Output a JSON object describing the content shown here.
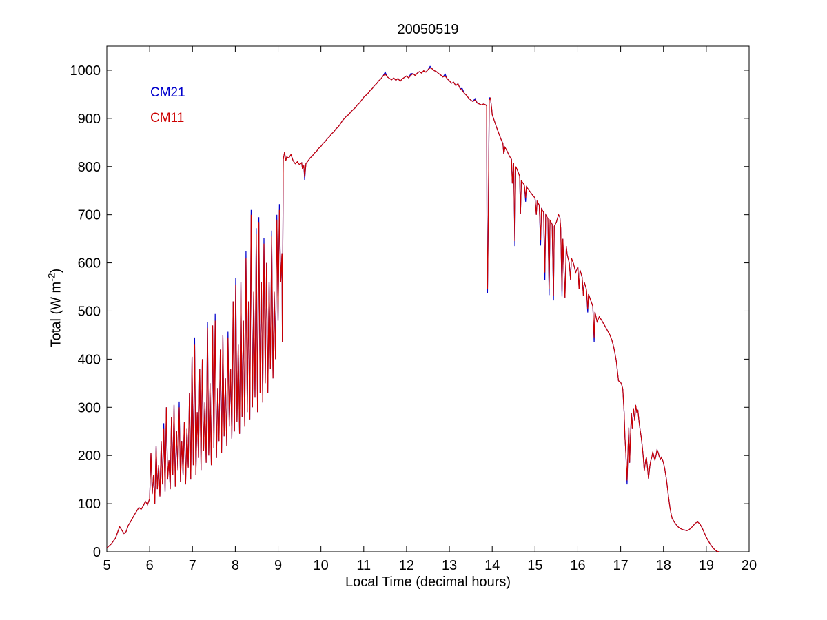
{
  "ylabel_parts": {
    "pre": "Total (W m",
    "sup": "-2",
    "post": ")"
  },
  "legend": {
    "items": [
      {
        "label": "CM21",
        "color": "#0000CC"
      },
      {
        "label": "CM11",
        "color": "#CC0000"
      }
    ]
  },
  "chart_data": {
    "type": "line",
    "title": "20050519",
    "xlabel": "Local Time (decimal hours)",
    "ylabel": "Total (W m^-2)",
    "xlim": [
      5,
      20
    ],
    "ylim": [
      0,
      1050
    ],
    "grid": false,
    "x_ticks": [
      5,
      6,
      7,
      8,
      9,
      10,
      11,
      12,
      13,
      14,
      15,
      16,
      17,
      18,
      19,
      20
    ],
    "y_ticks": [
      0,
      100,
      200,
      300,
      400,
      500,
      600,
      700,
      800,
      900,
      1000
    ],
    "legend_position": "top-left-inside-text",
    "series": [
      {
        "name": "CM21",
        "color": "#0000CC"
      },
      {
        "name": "CM11",
        "color": "#CC0000"
      }
    ],
    "points_note": "each point = [x_hours, cm11_wm2, optional cm21_minus_cm11_offset]",
    "points": [
      [
        5,
        8
      ],
      [
        5.05,
        12
      ],
      [
        5.1,
        16
      ],
      [
        5.15,
        22
      ],
      [
        5.2,
        28
      ],
      [
        5.25,
        40
      ],
      [
        5.3,
        52
      ],
      [
        5.35,
        45
      ],
      [
        5.4,
        38
      ],
      [
        5.45,
        42
      ],
      [
        5.5,
        55
      ],
      [
        5.55,
        62
      ],
      [
        5.6,
        70
      ],
      [
        5.65,
        78
      ],
      [
        5.7,
        85
      ],
      [
        5.75,
        92
      ],
      [
        5.8,
        88
      ],
      [
        5.85,
        95
      ],
      [
        5.9,
        105
      ],
      [
        5.95,
        98
      ],
      [
        6,
        110
      ],
      [
        6.03,
        205
      ],
      [
        6.06,
        120
      ],
      [
        6.09,
        160
      ],
      [
        6.12,
        100
      ],
      [
        6.15,
        220
      ],
      [
        6.18,
        130
      ],
      [
        6.21,
        180
      ],
      [
        6.24,
        115
      ],
      [
        6.27,
        230
      ],
      [
        6.3,
        140
      ],
      [
        6.33,
        255,
        12
      ],
      [
        6.36,
        125
      ],
      [
        6.39,
        300
      ],
      [
        6.42,
        150
      ],
      [
        6.45,
        190
      ],
      [
        6.48,
        130
      ],
      [
        6.51,
        280
      ],
      [
        6.54,
        160
      ],
      [
        6.57,
        305
      ],
      [
        6.6,
        135
      ],
      [
        6.63,
        250
      ],
      [
        6.66,
        170
      ],
      [
        6.69,
        300,
        12
      ],
      [
        6.72,
        145
      ],
      [
        6.75,
        230
      ],
      [
        6.78,
        160
      ],
      [
        6.81,
        270
      ],
      [
        6.84,
        140
      ],
      [
        6.87,
        255
      ],
      [
        6.9,
        175
      ],
      [
        6.93,
        330
      ],
      [
        6.96,
        150
      ],
      [
        6.99,
        405
      ],
      [
        7.02,
        180
      ],
      [
        7.05,
        430,
        15
      ],
      [
        7.08,
        160
      ],
      [
        7.11,
        290
      ],
      [
        7.14,
        195
      ],
      [
        7.17,
        380
      ],
      [
        7.2,
        170
      ],
      [
        7.23,
        400
      ],
      [
        7.26,
        210
      ],
      [
        7.29,
        310
      ],
      [
        7.32,
        185
      ],
      [
        7.35,
        465,
        12
      ],
      [
        7.38,
        200
      ],
      [
        7.41,
        350
      ],
      [
        7.44,
        180
      ],
      [
        7.47,
        470
      ],
      [
        7.5,
        215
      ],
      [
        7.53,
        480,
        14
      ],
      [
        7.56,
        195
      ],
      [
        7.59,
        340
      ],
      [
        7.62,
        230
      ],
      [
        7.65,
        420
      ],
      [
        7.68,
        205
      ],
      [
        7.71,
        450
      ],
      [
        7.74,
        240
      ],
      [
        7.77,
        360
      ],
      [
        7.8,
        220
      ],
      [
        7.83,
        445,
        12
      ],
      [
        7.86,
        260
      ],
      [
        7.89,
        380
      ],
      [
        7.92,
        235
      ],
      [
        7.95,
        520
      ],
      [
        7.98,
        250
      ],
      [
        8.01,
        555,
        14
      ],
      [
        8.04,
        270
      ],
      [
        8.07,
        430
      ],
      [
        8.1,
        245
      ],
      [
        8.13,
        560
      ],
      [
        8.16,
        280
      ],
      [
        8.19,
        480
      ],
      [
        8.22,
        260
      ],
      [
        8.25,
        610,
        15
      ],
      [
        8.28,
        290
      ],
      [
        8.31,
        520
      ],
      [
        8.34,
        275
      ],
      [
        8.37,
        700,
        10
      ],
      [
        8.4,
        300
      ],
      [
        8.43,
        540
      ],
      [
        8.46,
        320
      ],
      [
        8.49,
        660,
        12
      ],
      [
        8.52,
        290
      ],
      [
        8.55,
        685,
        10
      ],
      [
        8.58,
        330
      ],
      [
        8.61,
        560
      ],
      [
        8.64,
        310
      ],
      [
        8.67,
        640,
        12
      ],
      [
        8.7,
        350
      ],
      [
        8.73,
        600
      ],
      [
        8.76,
        330
      ],
      [
        8.79,
        560
      ],
      [
        8.82,
        380
      ],
      [
        8.85,
        655,
        12
      ],
      [
        8.88,
        360
      ],
      [
        8.91,
        540
      ],
      [
        8.94,
        400
      ],
      [
        8.97,
        690,
        10
      ],
      [
        9,
        480
      ],
      [
        9.03,
        710,
        12
      ],
      [
        9.06,
        560
      ],
      [
        9.09,
        620
      ],
      [
        9.1,
        435
      ],
      [
        9.12,
        815
      ],
      [
        9.15,
        830
      ],
      [
        9.18,
        812
      ],
      [
        9.2,
        820
      ],
      [
        9.25,
        818
      ],
      [
        9.3,
        825
      ],
      [
        9.35,
        812
      ],
      [
        9.4,
        806
      ],
      [
        9.45,
        810
      ],
      [
        9.5,
        804
      ],
      [
        9.55,
        808
      ],
      [
        9.57,
        795
      ],
      [
        9.6,
        802
      ],
      [
        9.62,
        778,
        -6
      ],
      [
        9.65,
        806
      ],
      [
        9.7,
        812
      ],
      [
        9.75,
        818
      ],
      [
        9.8,
        822
      ],
      [
        9.85,
        828
      ],
      [
        9.9,
        832
      ],
      [
        9.95,
        838
      ],
      [
        10,
        842
      ],
      [
        10.05,
        848
      ],
      [
        10.1,
        852
      ],
      [
        10.15,
        858
      ],
      [
        10.2,
        862
      ],
      [
        10.25,
        868
      ],
      [
        10.3,
        872
      ],
      [
        10.35,
        878
      ],
      [
        10.4,
        882
      ],
      [
        10.45,
        888
      ],
      [
        10.5,
        895
      ],
      [
        10.55,
        900
      ],
      [
        10.6,
        905
      ],
      [
        10.65,
        908
      ],
      [
        10.7,
        914
      ],
      [
        10.75,
        918
      ],
      [
        10.8,
        922
      ],
      [
        10.85,
        928
      ],
      [
        10.9,
        932
      ],
      [
        10.95,
        938
      ],
      [
        11,
        944
      ],
      [
        11.05,
        948
      ],
      [
        11.1,
        952
      ],
      [
        11.15,
        958
      ],
      [
        11.2,
        962
      ],
      [
        11.25,
        968
      ],
      [
        11.3,
        972
      ],
      [
        11.35,
        978
      ],
      [
        11.4,
        982
      ],
      [
        11.45,
        988
      ],
      [
        11.5,
        992,
        4
      ],
      [
        11.55,
        986
      ],
      [
        11.6,
        983
      ],
      [
        11.65,
        980
      ],
      [
        11.7,
        984
      ],
      [
        11.75,
        979
      ],
      [
        11.8,
        983
      ],
      [
        11.85,
        977
      ],
      [
        11.9,
        982
      ],
      [
        11.95,
        985
      ],
      [
        12,
        988
      ],
      [
        12.05,
        984
      ],
      [
        12.1,
        989,
        4
      ],
      [
        12.15,
        993
      ],
      [
        12.2,
        989
      ],
      [
        12.25,
        994
      ],
      [
        12.3,
        997
      ],
      [
        12.35,
        994
      ],
      [
        12.4,
        999
      ],
      [
        12.45,
        996
      ],
      [
        12.5,
        1001
      ],
      [
        12.55,
        1005,
        3
      ],
      [
        12.6,
        1003
      ],
      [
        12.65,
        999
      ],
      [
        12.7,
        997
      ],
      [
        12.75,
        993
      ],
      [
        12.8,
        990
      ],
      [
        12.85,
        986
      ],
      [
        12.9,
        988,
        4
      ],
      [
        12.95,
        982
      ],
      [
        13,
        978
      ],
      [
        13.05,
        973
      ],
      [
        13.1,
        975
      ],
      [
        13.15,
        968
      ],
      [
        13.2,
        972
      ],
      [
        13.25,
        962
      ],
      [
        13.3,
        958,
        4
      ],
      [
        13.35,
        952
      ],
      [
        13.4,
        948
      ],
      [
        13.45,
        942
      ],
      [
        13.5,
        938
      ],
      [
        13.55,
        935
      ],
      [
        13.6,
        938,
        3
      ],
      [
        13.65,
        932
      ],
      [
        13.7,
        930
      ],
      [
        13.75,
        928
      ],
      [
        13.8,
        930
      ],
      [
        13.85,
        928
      ],
      [
        13.87,
        926
      ],
      [
        13.88,
        640
      ],
      [
        13.89,
        545,
        -8
      ],
      [
        13.91,
        700
      ],
      [
        13.93,
        938,
        5
      ],
      [
        13.96,
        942
      ],
      [
        13.99,
        918
      ],
      [
        14,
        908
      ],
      [
        14.05,
        895
      ],
      [
        14.1,
        882
      ],
      [
        14.15,
        870
      ],
      [
        14.2,
        858
      ],
      [
        14.25,
        848
      ],
      [
        14.27,
        826
      ],
      [
        14.3,
        840
      ],
      [
        14.35,
        832
      ],
      [
        14.4,
        822
      ],
      [
        14.45,
        815
      ],
      [
        14.47,
        765
      ],
      [
        14.5,
        808
      ],
      [
        14.53,
        645,
        -10
      ],
      [
        14.55,
        800
      ],
      [
        14.6,
        790
      ],
      [
        14.64,
        780
      ],
      [
        14.66,
        702
      ],
      [
        14.68,
        772
      ],
      [
        14.7,
        768
      ],
      [
        14.75,
        762
      ],
      [
        14.78,
        735,
        -8
      ],
      [
        14.8,
        758
      ],
      [
        14.85,
        752
      ],
      [
        14.9,
        746
      ],
      [
        14.95,
        740
      ],
      [
        15,
        735
      ],
      [
        15.03,
        700
      ],
      [
        15.05,
        728
      ],
      [
        15.1,
        720
      ],
      [
        15.13,
        648,
        -12
      ],
      [
        15.15,
        712
      ],
      [
        15.2,
        705
      ],
      [
        15.23,
        580,
        -15
      ],
      [
        15.25,
        700
      ],
      [
        15.3,
        692
      ],
      [
        15.33,
        545,
        -12
      ],
      [
        15.35,
        688
      ],
      [
        15.4,
        680
      ],
      [
        15.43,
        532,
        -10
      ],
      [
        15.45,
        676
      ],
      [
        15.5,
        685
      ],
      [
        15.55,
        700
      ],
      [
        15.58,
        695
      ],
      [
        15.6,
        672
      ],
      [
        15.63,
        540,
        -10
      ],
      [
        15.65,
        650
      ],
      [
        15.7,
        528
      ],
      [
        15.73,
        635
      ],
      [
        15.75,
        618
      ],
      [
        15.8,
        600
      ],
      [
        15.83,
        565
      ],
      [
        15.85,
        610
      ],
      [
        15.9,
        598
      ],
      [
        15.95,
        580
      ],
      [
        16,
        592
      ],
      [
        16.03,
        545
      ],
      [
        16.05,
        585
      ],
      [
        16.1,
        570
      ],
      [
        16.13,
        532
      ],
      [
        16.15,
        560
      ],
      [
        16.2,
        545
      ],
      [
        16.23,
        505,
        -8
      ],
      [
        16.25,
        535
      ],
      [
        16.3,
        522
      ],
      [
        16.35,
        510
      ],
      [
        16.38,
        445,
        -10
      ],
      [
        16.4,
        498
      ],
      [
        16.45,
        478
      ],
      [
        16.5,
        488
      ],
      [
        16.55,
        482
      ],
      [
        16.6,
        474
      ],
      [
        16.65,
        466
      ],
      [
        16.7,
        458
      ],
      [
        16.75,
        450
      ],
      [
        16.8,
        438
      ],
      [
        16.85,
        420
      ],
      [
        16.9,
        395
      ],
      [
        16.93,
        370
      ],
      [
        16.95,
        355
      ],
      [
        17,
        352
      ],
      [
        17.03,
        345
      ],
      [
        17.05,
        338
      ],
      [
        17.08,
        290
      ],
      [
        17.1,
        238
      ],
      [
        17.12,
        205
      ],
      [
        17.15,
        148,
        -8
      ],
      [
        17.17,
        210
      ],
      [
        17.19,
        258
      ],
      [
        17.21,
        185
      ],
      [
        17.23,
        240
      ],
      [
        17.25,
        288
      ],
      [
        17.27,
        255
      ],
      [
        17.3,
        298
      ],
      [
        17.33,
        272
      ],
      [
        17.35,
        305
      ],
      [
        17.38,
        288
      ],
      [
        17.4,
        295
      ],
      [
        17.43,
        270
      ],
      [
        17.45,
        255
      ],
      [
        17.48,
        238
      ],
      [
        17.5,
        222
      ],
      [
        17.53,
        195
      ],
      [
        17.55,
        168
      ],
      [
        17.58,
        188
      ],
      [
        17.6,
        196
      ],
      [
        17.63,
        172
      ],
      [
        17.65,
        152
      ],
      [
        17.68,
        178
      ],
      [
        17.7,
        188
      ],
      [
        17.73,
        198
      ],
      [
        17.75,
        208
      ],
      [
        17.78,
        196
      ],
      [
        17.8,
        190
      ],
      [
        17.83,
        202
      ],
      [
        17.85,
        212
      ],
      [
        17.88,
        205
      ],
      [
        17.9,
        198
      ],
      [
        17.93,
        192
      ],
      [
        17.95,
        196
      ],
      [
        17.98,
        190
      ],
      [
        18,
        185
      ],
      [
        18.03,
        172
      ],
      [
        18.06,
        155
      ],
      [
        18.09,
        135
      ],
      [
        18.12,
        112
      ],
      [
        18.15,
        92
      ],
      [
        18.18,
        78
      ],
      [
        18.2,
        70
      ],
      [
        18.25,
        62
      ],
      [
        18.3,
        56
      ],
      [
        18.35,
        51
      ],
      [
        18.4,
        48
      ],
      [
        18.45,
        46
      ],
      [
        18.5,
        45
      ],
      [
        18.55,
        44
      ],
      [
        18.6,
        46
      ],
      [
        18.65,
        50
      ],
      [
        18.7,
        55
      ],
      [
        18.75,
        60
      ],
      [
        18.8,
        62
      ],
      [
        18.85,
        58
      ],
      [
        18.9,
        50
      ],
      [
        18.95,
        40
      ],
      [
        19,
        30
      ],
      [
        19.05,
        22
      ],
      [
        19.1,
        15
      ],
      [
        19.15,
        9
      ],
      [
        19.2,
        4
      ],
      [
        19.25,
        1
      ],
      [
        19.3,
        0
      ]
    ]
  }
}
